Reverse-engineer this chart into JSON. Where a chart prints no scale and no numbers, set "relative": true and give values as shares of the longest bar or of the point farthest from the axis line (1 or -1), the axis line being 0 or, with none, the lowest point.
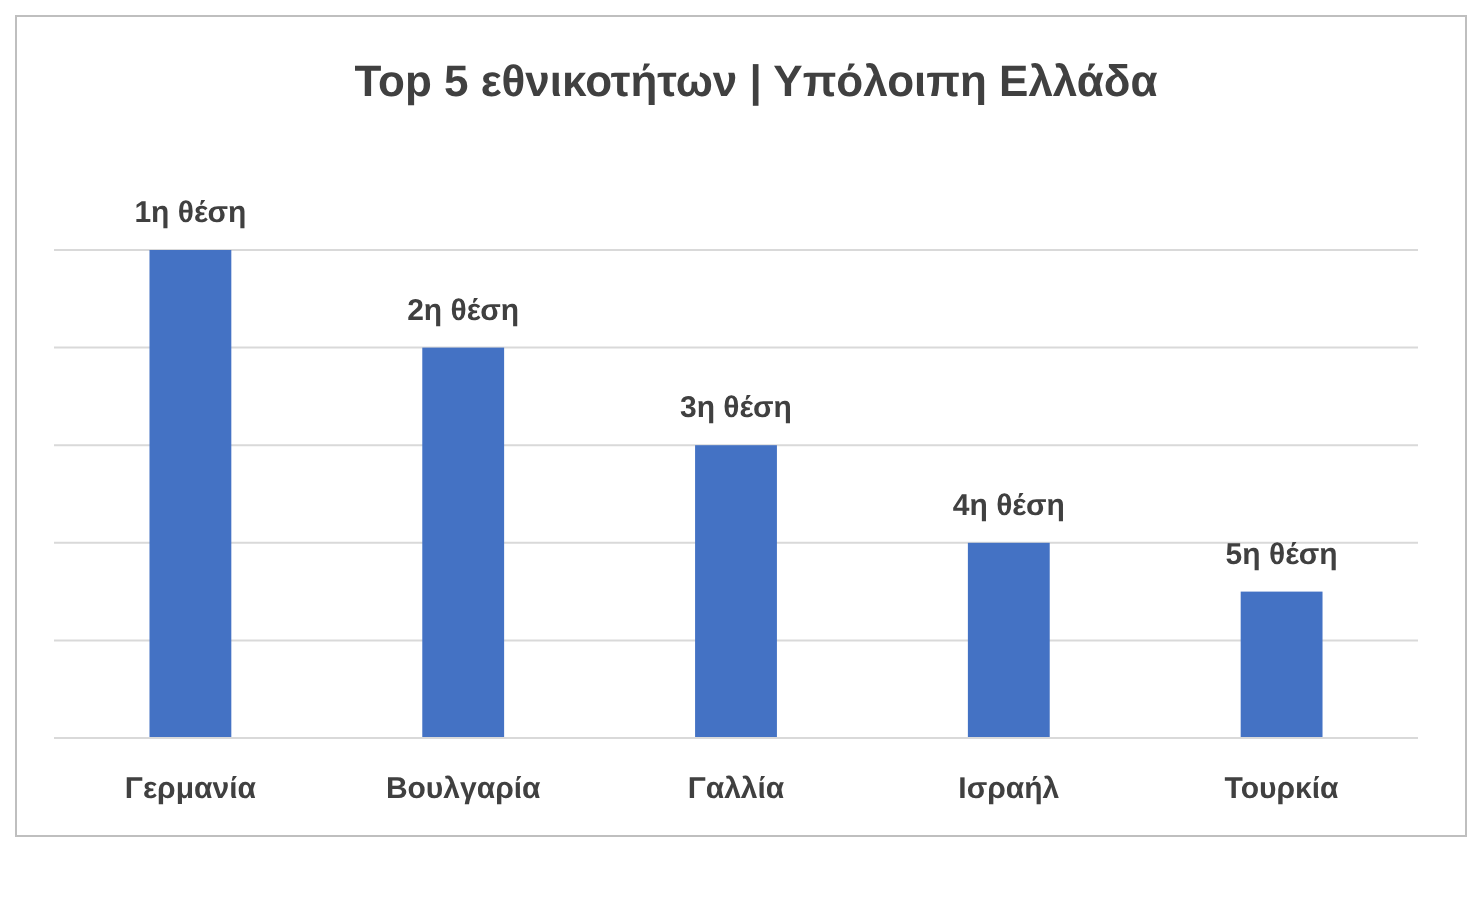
{
  "chart_data": {
    "type": "bar",
    "title": "Top 5 εθνικοτήτων | Υπόλοιπη Ελλάδα",
    "categories": [
      "Γερμανία",
      "Βουλγαρία",
      "Γαλλία",
      "Ισραήλ",
      "Τουρκία"
    ],
    "values": [
      1,
      0.8,
      0.6,
      0.4,
      0.3
    ],
    "annotations": [
      {
        "text": "1η θέση",
        "x": "Γερμανία",
        "y": 1
      },
      {
        "text": "2η θέση",
        "x": "Βουλγαρία",
        "y": 0.8
      },
      {
        "text": "3η θέση",
        "x": "Γαλλία",
        "y": 0.6
      },
      {
        "text": "4η θέση",
        "x": "Ισραήλ",
        "y": 0.4
      },
      {
        "text": "5η θέση",
        "x": "Τουρκία",
        "y": 0.3
      }
    ],
    "color": "#4472c4",
    "relative": true,
    "grid": "y"
  }
}
